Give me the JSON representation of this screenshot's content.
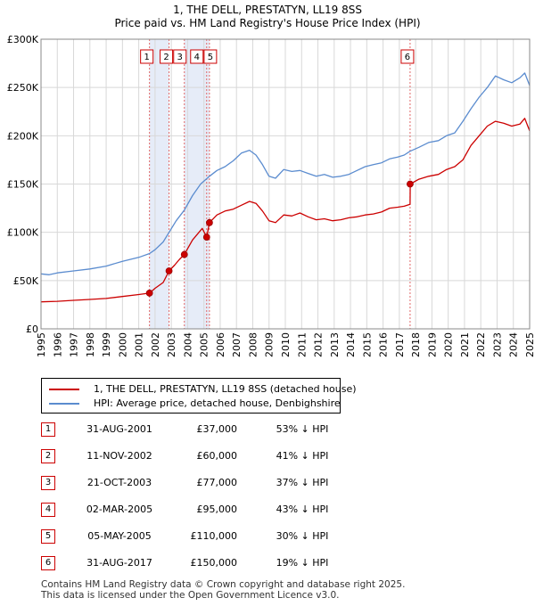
{
  "header": {
    "title": "1, THE DELL, PRESTATYN, LL19 8SS",
    "subtitle": "Price paid vs. HM Land Registry's House Price Index (HPI)"
  },
  "colors": {
    "property": "#cc0000",
    "hpi": "#5b8ccf",
    "shade": "#e6ecf8",
    "marker_line": "#e06666"
  },
  "chart_data": {
    "type": "line",
    "title": "1, THE DELL, PRESTATYN, LL19 8SS",
    "subtitle": "Price paid vs. HM Land Registry's House Price Index (HPI)",
    "xlim": [
      1995.0,
      2025.0
    ],
    "ylim": [
      0,
      300000
    ],
    "grid": true,
    "x_ticks": [
      "1995",
      "1996",
      "1997",
      "1998",
      "1999",
      "2000",
      "2001",
      "2002",
      "2003",
      "2004",
      "2005",
      "2006",
      "2007",
      "2008",
      "2009",
      "2010",
      "2011",
      "2012",
      "2013",
      "2014",
      "2015",
      "2016",
      "2017",
      "2018",
      "2019",
      "2020",
      "2021",
      "2022",
      "2023",
      "2024",
      "2025"
    ],
    "y_ticks": [
      {
        "value": 0,
        "label": "£0"
      },
      {
        "value": 50000,
        "label": "£50K"
      },
      {
        "value": 100000,
        "label": "£100K"
      },
      {
        "value": 150000,
        "label": "£150K"
      },
      {
        "value": 200000,
        "label": "£200K"
      },
      {
        "value": 250000,
        "label": "£250K"
      },
      {
        "value": 300000,
        "label": "£300K"
      }
    ],
    "shaded_periods": [
      [
        2001.66,
        2002.86
      ],
      [
        2003.8,
        2005.34
      ]
    ],
    "series": [
      {
        "name": "1, THE DELL, PRESTATYN, LL19 8SS (detached house)",
        "color": "#cc0000",
        "points": [
          [
            1995.0,
            28000
          ],
          [
            1996.0,
            28500
          ],
          [
            1997.0,
            29500
          ],
          [
            1998.0,
            30500
          ],
          [
            1999.0,
            31500
          ],
          [
            2000.0,
            33500
          ],
          [
            2001.0,
            35500
          ],
          [
            2001.66,
            37000
          ],
          [
            2002.0,
            42000
          ],
          [
            2002.5,
            48000
          ],
          [
            2002.86,
            60000
          ],
          [
            2003.2,
            66000
          ],
          [
            2003.5,
            72000
          ],
          [
            2003.8,
            77000
          ],
          [
            2004.3,
            92000
          ],
          [
            2004.9,
            104000
          ],
          [
            2005.17,
            95000
          ],
          [
            2005.34,
            110000
          ],
          [
            2005.8,
            118000
          ],
          [
            2006.3,
            122000
          ],
          [
            2006.8,
            124000
          ],
          [
            2007.3,
            128000
          ],
          [
            2007.8,
            132000
          ],
          [
            2008.2,
            130000
          ],
          [
            2008.6,
            122000
          ],
          [
            2009.0,
            112000
          ],
          [
            2009.4,
            110000
          ],
          [
            2009.9,
            118000
          ],
          [
            2010.4,
            117000
          ],
          [
            2010.9,
            120000
          ],
          [
            2011.4,
            116000
          ],
          [
            2011.9,
            113000
          ],
          [
            2012.4,
            114000
          ],
          [
            2012.9,
            112000
          ],
          [
            2013.4,
            113000
          ],
          [
            2013.9,
            115000
          ],
          [
            2014.4,
            116000
          ],
          [
            2014.9,
            118000
          ],
          [
            2015.4,
            119000
          ],
          [
            2015.9,
            121000
          ],
          [
            2016.4,
            125000
          ],
          [
            2016.9,
            126000
          ],
          [
            2017.3,
            127000
          ],
          [
            2017.66,
            129000
          ],
          [
            2017.67,
            150000
          ],
          [
            2018.2,
            155000
          ],
          [
            2018.8,
            158000
          ],
          [
            2019.4,
            160000
          ],
          [
            2019.9,
            165000
          ],
          [
            2020.4,
            168000
          ],
          [
            2020.9,
            175000
          ],
          [
            2021.4,
            190000
          ],
          [
            2021.9,
            200000
          ],
          [
            2022.4,
            210000
          ],
          [
            2022.9,
            215000
          ],
          [
            2023.4,
            213000
          ],
          [
            2023.9,
            210000
          ],
          [
            2024.4,
            212000
          ],
          [
            2024.7,
            218000
          ],
          [
            2025.0,
            205000
          ]
        ]
      },
      {
        "name": "HPI: Average price, detached house, Denbighshire",
        "color": "#5b8ccf",
        "points": [
          [
            1995.0,
            57000
          ],
          [
            1995.5,
            56000
          ],
          [
            1996.0,
            58000
          ],
          [
            1997.0,
            60000
          ],
          [
            1998.0,
            62000
          ],
          [
            1999.0,
            65000
          ],
          [
            2000.0,
            70000
          ],
          [
            2001.0,
            74000
          ],
          [
            2001.66,
            78000
          ],
          [
            2002.0,
            82000
          ],
          [
            2002.5,
            90000
          ],
          [
            2002.86,
            100000
          ],
          [
            2003.3,
            112000
          ],
          [
            2003.8,
            123000
          ],
          [
            2004.3,
            138000
          ],
          [
            2004.8,
            150000
          ],
          [
            2005.34,
            158000
          ],
          [
            2005.8,
            164000
          ],
          [
            2006.3,
            168000
          ],
          [
            2006.8,
            174000
          ],
          [
            2007.3,
            182000
          ],
          [
            2007.8,
            185000
          ],
          [
            2008.2,
            180000
          ],
          [
            2008.6,
            170000
          ],
          [
            2009.0,
            158000
          ],
          [
            2009.4,
            156000
          ],
          [
            2009.9,
            165000
          ],
          [
            2010.4,
            163000
          ],
          [
            2010.9,
            164000
          ],
          [
            2011.4,
            161000
          ],
          [
            2011.9,
            158000
          ],
          [
            2012.4,
            160000
          ],
          [
            2012.9,
            157000
          ],
          [
            2013.4,
            158000
          ],
          [
            2013.9,
            160000
          ],
          [
            2014.4,
            164000
          ],
          [
            2014.9,
            168000
          ],
          [
            2015.4,
            170000
          ],
          [
            2015.9,
            172000
          ],
          [
            2016.4,
            176000
          ],
          [
            2016.9,
            178000
          ],
          [
            2017.3,
            180000
          ],
          [
            2017.66,
            184000
          ],
          [
            2018.2,
            188000
          ],
          [
            2018.8,
            193000
          ],
          [
            2019.4,
            195000
          ],
          [
            2019.9,
            200000
          ],
          [
            2020.4,
            203000
          ],
          [
            2020.9,
            215000
          ],
          [
            2021.4,
            228000
          ],
          [
            2021.9,
            240000
          ],
          [
            2022.4,
            250000
          ],
          [
            2022.9,
            262000
          ],
          [
            2023.4,
            258000
          ],
          [
            2023.9,
            255000
          ],
          [
            2024.4,
            260000
          ],
          [
            2024.7,
            265000
          ],
          [
            2025.0,
            252000
          ]
        ]
      }
    ],
    "sales": [
      {
        "num": "1",
        "x": 2001.66,
        "price": 37000
      },
      {
        "num": "2",
        "x": 2002.86,
        "price": 60000
      },
      {
        "num": "3",
        "x": 2003.8,
        "price": 77000
      },
      {
        "num": "4",
        "x": 2005.17,
        "price": 95000
      },
      {
        "num": "5",
        "x": 2005.34,
        "price": 110000
      },
      {
        "num": "6",
        "x": 2017.66,
        "price": 150000
      }
    ]
  },
  "legend": {
    "property_label": "1, THE DELL, PRESTATYN, LL19 8SS (detached house)",
    "hpi_label": "HPI: Average price, detached house, Denbighshire"
  },
  "sales_table": [
    {
      "num": "1",
      "date": "31-AUG-2001",
      "price": "£37,000",
      "hpi": "53% ↓ HPI"
    },
    {
      "num": "2",
      "date": "11-NOV-2002",
      "price": "£60,000",
      "hpi": "41% ↓ HPI"
    },
    {
      "num": "3",
      "date": "21-OCT-2003",
      "price": "£77,000",
      "hpi": "37% ↓ HPI"
    },
    {
      "num": "4",
      "date": "02-MAR-2005",
      "price": "£95,000",
      "hpi": "43% ↓ HPI"
    },
    {
      "num": "5",
      "date": "05-MAY-2005",
      "price": "£110,000",
      "hpi": "30% ↓ HPI"
    },
    {
      "num": "6",
      "date": "31-AUG-2017",
      "price": "£150,000",
      "hpi": "19% ↓ HPI"
    }
  ],
  "footer": {
    "line1": "Contains HM Land Registry data © Crown copyright and database right 2025.",
    "line2": "This data is licensed under the Open Government Licence v3.0."
  }
}
